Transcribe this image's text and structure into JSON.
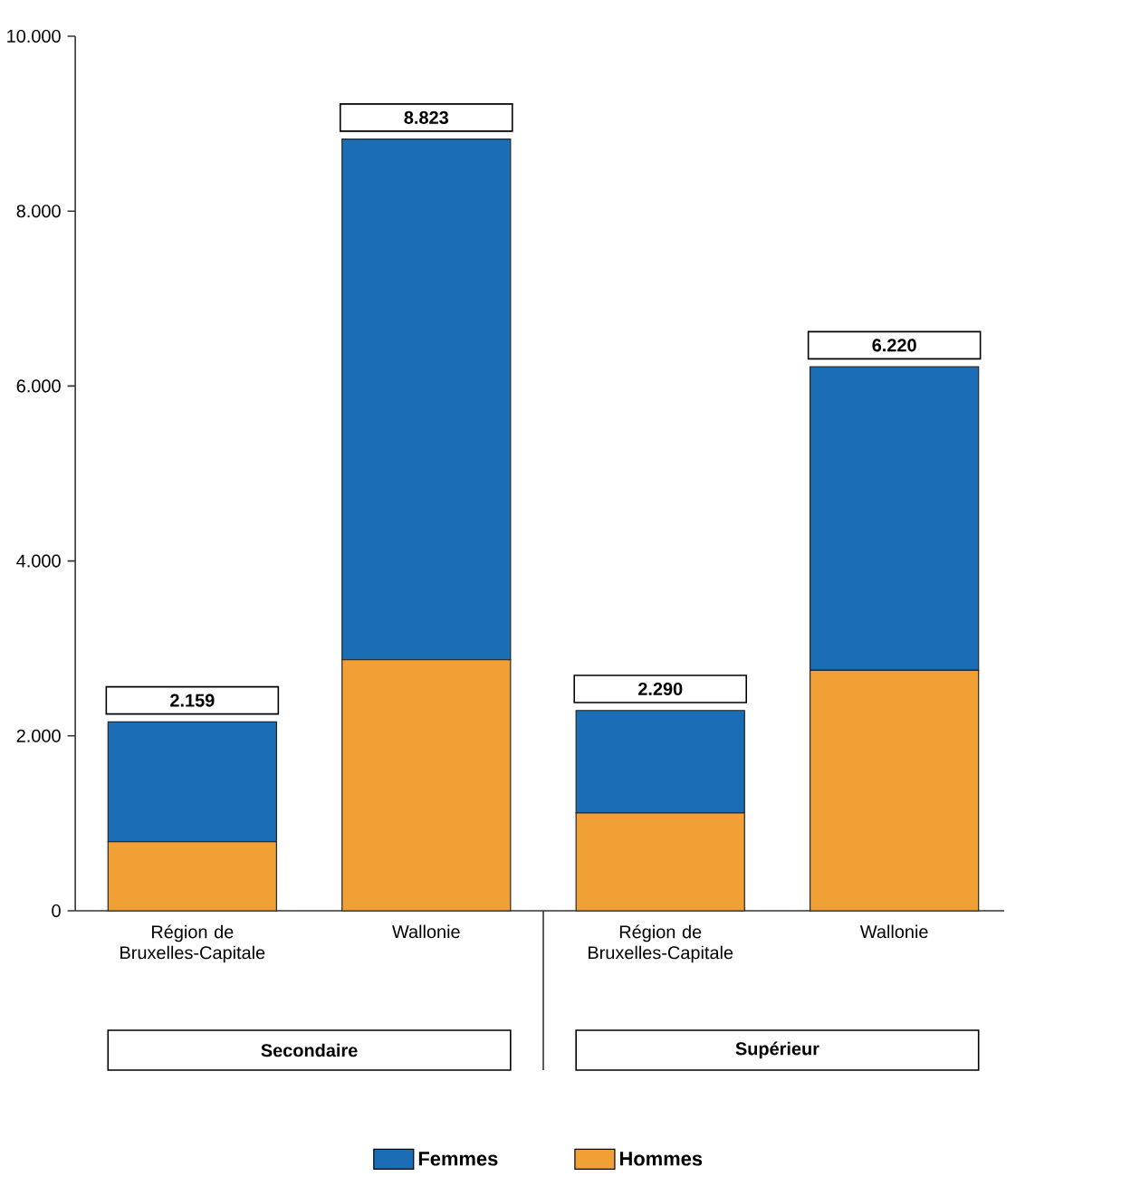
{
  "chart_data": {
    "type": "bar",
    "stacked": true,
    "categories": [
      "Région de Bruxelles-Capitale",
      "Wallonie",
      "Région de Bruxelles-Capitale",
      "Wallonie"
    ],
    "series": [
      {
        "name": "Hommes",
        "color": "#f0a035",
        "values": [
          790,
          2870,
          1120,
          2750
        ]
      },
      {
        "name": "Femmes",
        "color": "#1b6db5",
        "values": [
          1369,
          5953,
          1170,
          3470
        ]
      }
    ],
    "totals": [
      "2.159",
      "8.823",
      "2.290",
      "6.220"
    ],
    "annotations": [
      "Secondaire",
      "Supérieur"
    ],
    "ylim": [
      0,
      10000
    ],
    "yticks": [
      {
        "value": 0,
        "label": "0"
      },
      {
        "value": 2000,
        "label": "2.000"
      },
      {
        "value": 4000,
        "label": "4.000"
      },
      {
        "value": 6000,
        "label": "6.000"
      },
      {
        "value": 8000,
        "label": "8.000"
      },
      {
        "value": 10000,
        "label": "10.000"
      }
    ],
    "legend": "bottom"
  }
}
